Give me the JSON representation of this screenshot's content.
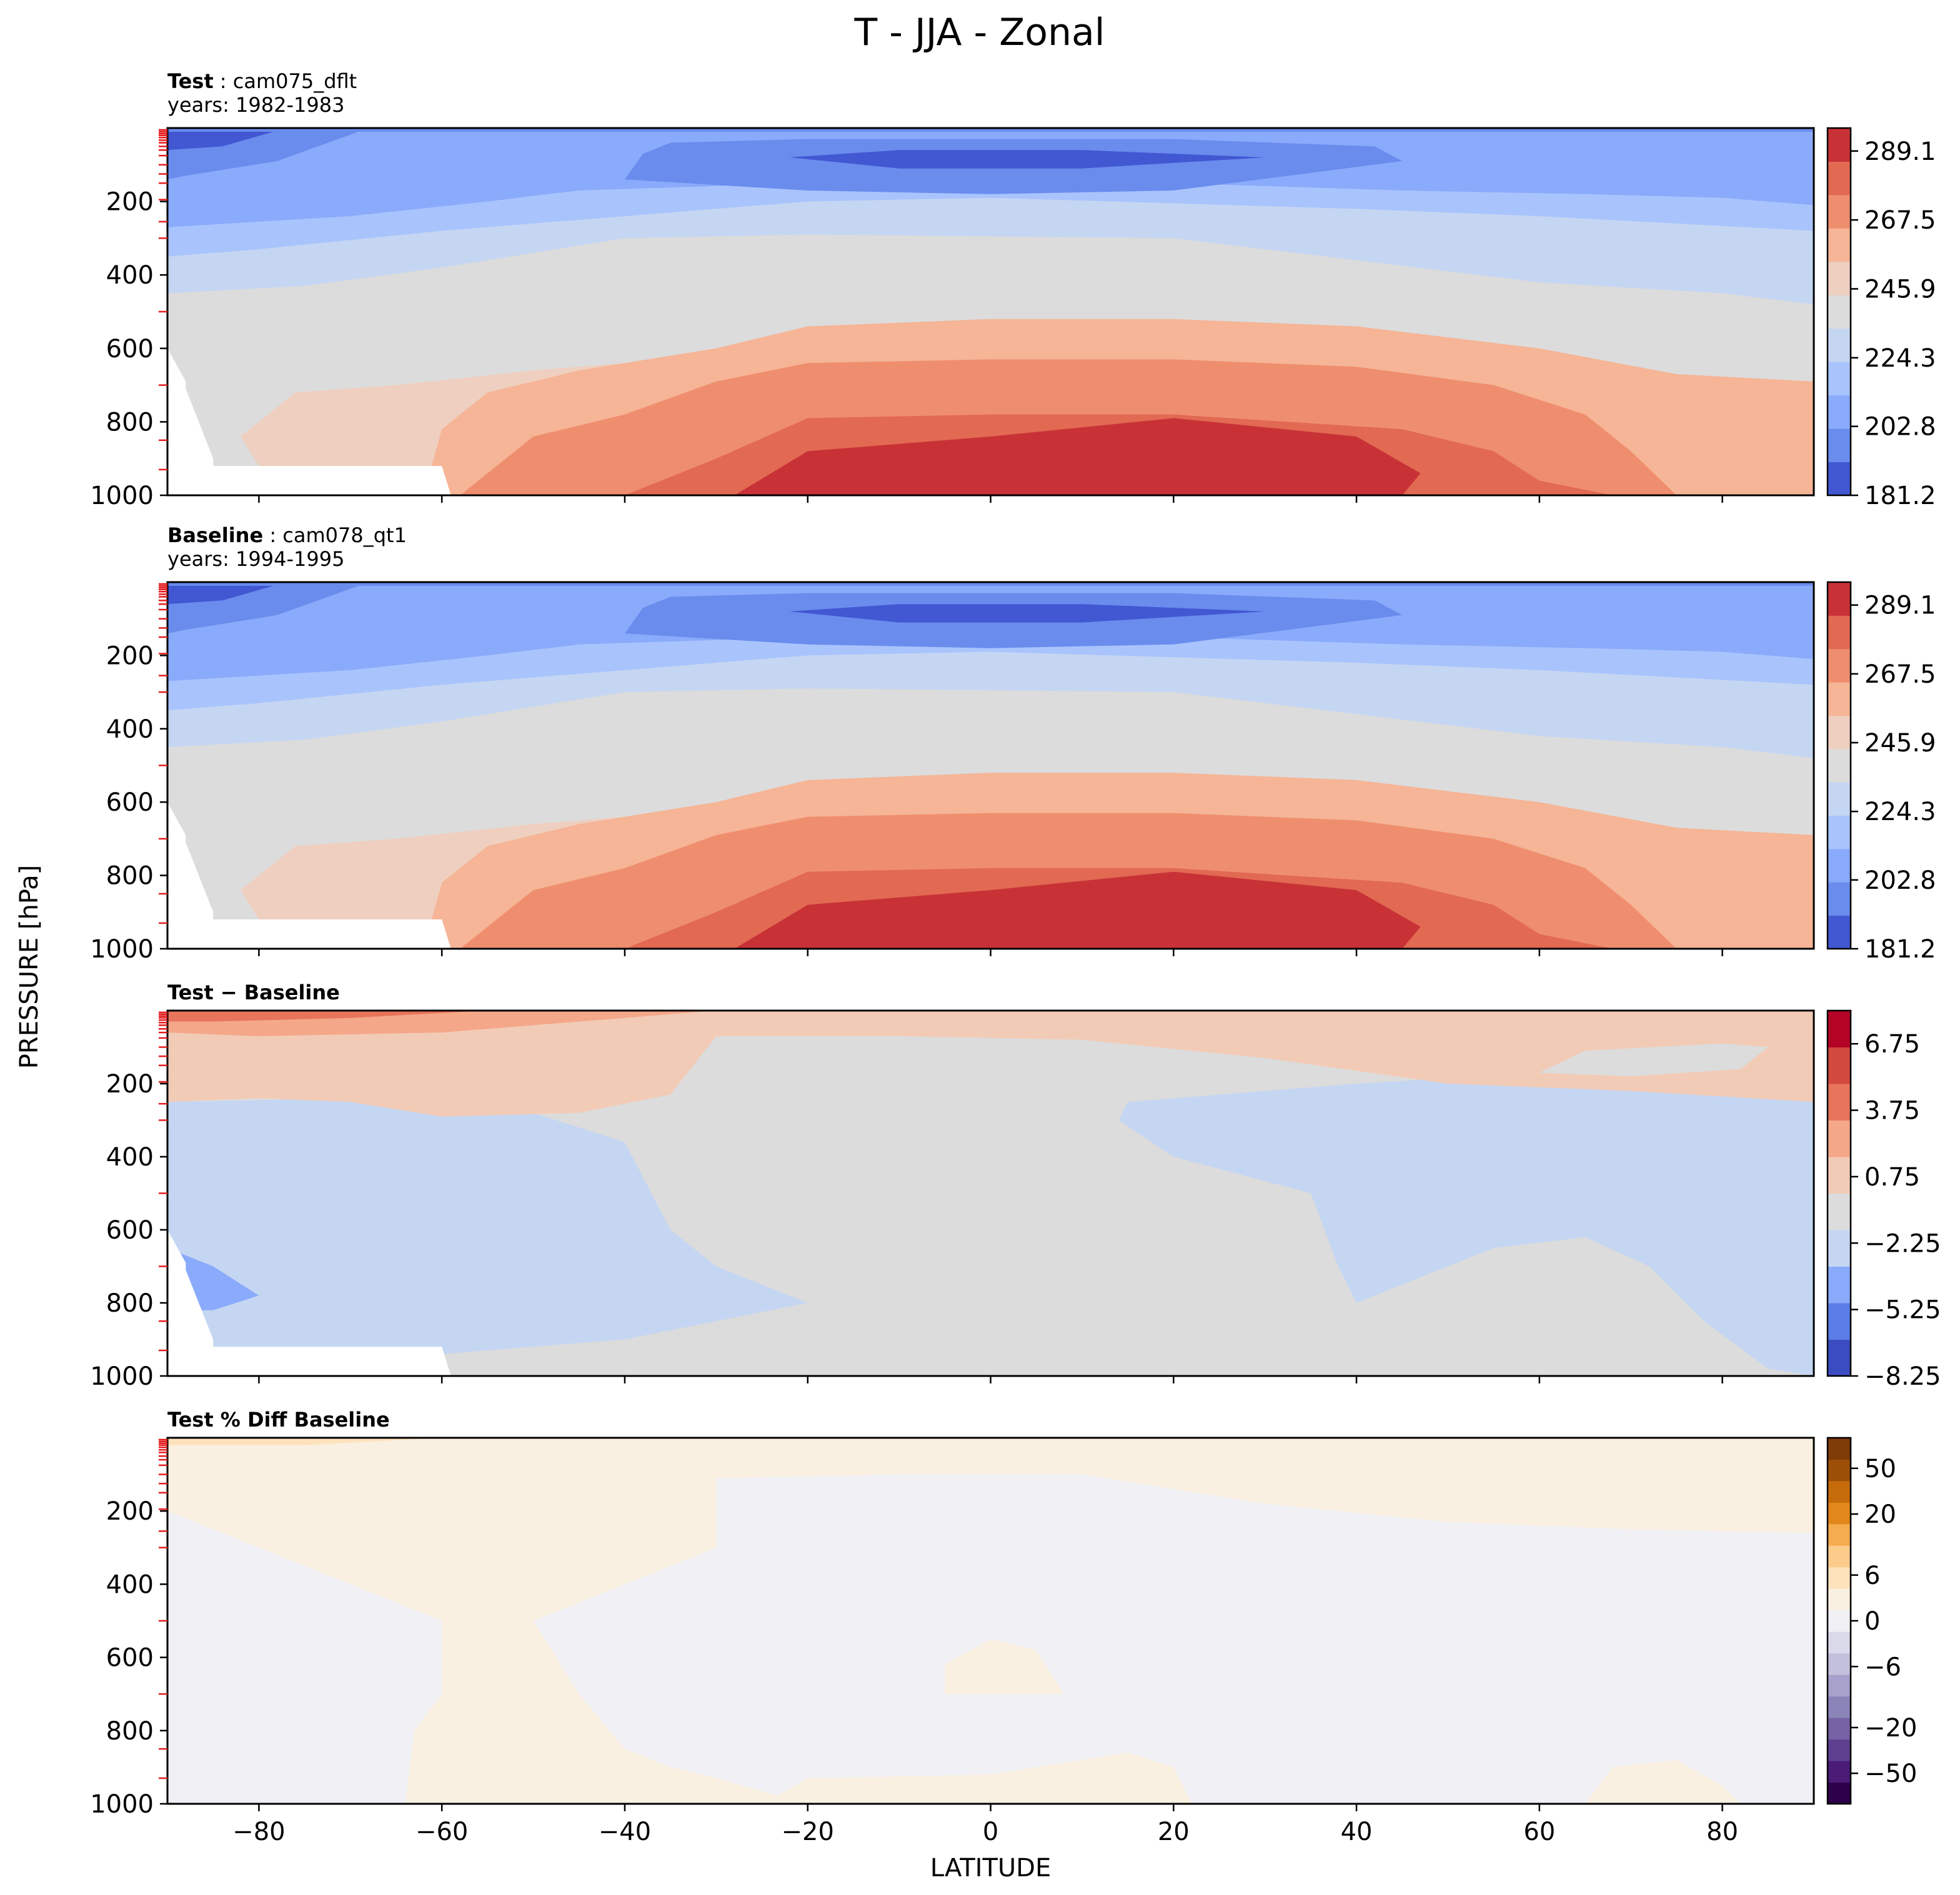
{
  "figure_title": "T - JJA - Zonal",
  "shared_axes": {
    "xlabel": "LATITUDE",
    "ylabel": "PRESSURE [hPa]",
    "xlim": [
      -90,
      90
    ],
    "xticks": [
      "−80",
      "−60",
      "−40",
      "−20",
      "0",
      "20",
      "40",
      "60",
      "80"
    ],
    "xtick_values": [
      -80,
      -60,
      -40,
      -20,
      0,
      20,
      40,
      60,
      80
    ],
    "ylim": [
      0,
      1000
    ],
    "yticks": [
      "200",
      "400",
      "600",
      "800",
      "1000"
    ],
    "ytick_values": [
      200,
      400,
      600,
      800,
      1000
    ]
  },
  "panels": [
    {
      "id": "test",
      "title_bold": "Test",
      "title_sep": ":",
      "title_case": "cam075_dflt",
      "title_years": "years: 1982-1983",
      "colorbar_ticks": [
        "289.1",
        "267.5",
        "245.9",
        "224.3",
        "202.8",
        "181.2"
      ]
    },
    {
      "id": "baseline",
      "title_bold": "Baseline",
      "title_sep": ":",
      "title_case": "cam078_qt1",
      "title_years": "years: 1994-1995",
      "colorbar_ticks": [
        "289.1",
        "267.5",
        "245.9",
        "224.3",
        "202.8",
        "181.2"
      ]
    },
    {
      "id": "diff",
      "title_bold": "Test − Baseline",
      "colorbar_ticks": [
        "6.75",
        "3.75",
        "0.75",
        "−2.25",
        "−5.25",
        "−8.25"
      ]
    },
    {
      "id": "pctdiff",
      "title_bold": "Test % Diff Baseline",
      "colorbar_ticks": [
        "50",
        "20",
        "6",
        "0",
        "−6",
        "−20",
        "−50"
      ]
    }
  ],
  "chart_data": [
    {
      "type": "contourf",
      "title": "Test: cam075_dflt (years: 1982-1983)",
      "xlabel": "LATITUDE",
      "ylabel": "PRESSURE [hPa]",
      "xlim": [
        -90,
        90
      ],
      "ylim": [
        1000,
        0
      ],
      "levels": [
        181.2,
        188.4,
        195.6,
        202.8,
        210.0,
        217.1,
        224.3,
        231.5,
        238.7,
        245.9,
        253.1,
        260.3,
        267.5,
        274.7,
        281.9,
        289.1,
        296.3
      ],
      "colorbar_ticks": [
        181.2,
        202.8,
        224.3,
        245.9,
        267.5,
        289.1
      ],
      "cmap": "coolwarm",
      "colors": [
        "#4257d2",
        "#6a8ced",
        "#8aaafb",
        "#a9c4fd",
        "#c5d6f2",
        "#dcdcdc",
        "#efcfbf",
        "#f5b596",
        "#ef8e6e",
        "#e26952",
        "#c83236"
      ]
    },
    {
      "type": "contourf",
      "title": "Baseline: cam078_qt1 (years: 1994-1995)",
      "xlabel": "LATITUDE",
      "ylabel": "PRESSURE [hPa]",
      "xlim": [
        -90,
        90
      ],
      "ylim": [
        1000,
        0
      ],
      "levels": [
        181.2,
        188.4,
        195.6,
        202.8,
        210.0,
        217.1,
        224.3,
        231.5,
        238.7,
        245.9,
        253.1,
        260.3,
        267.5,
        274.7,
        281.9,
        289.1,
        296.3
      ],
      "colorbar_ticks": [
        181.2,
        202.8,
        224.3,
        245.9,
        267.5,
        289.1
      ],
      "cmap": "coolwarm",
      "colors": [
        "#4257d2",
        "#6a8ced",
        "#8aaafb",
        "#a9c4fd",
        "#c5d6f2",
        "#dcdcdc",
        "#efcfbf",
        "#f5b596",
        "#ef8e6e",
        "#e26952",
        "#c83236"
      ]
    },
    {
      "type": "contourf",
      "title": "Test − Baseline",
      "xlabel": "LATITUDE",
      "ylabel": "PRESSURE [hPa]",
      "xlim": [
        -90,
        90
      ],
      "ylim": [
        1000,
        0
      ],
      "levels": [
        -8.25,
        -6.75,
        -5.25,
        -3.75,
        -2.25,
        -0.75,
        0.75,
        2.25,
        3.75,
        5.25,
        6.75,
        8.25
      ],
      "colorbar_ticks": [
        -8.25,
        -5.25,
        -2.25,
        0.75,
        3.75,
        6.75
      ],
      "cmap": "coolwarm",
      "colors": [
        "#3b4cc0",
        "#5b7ce6",
        "#8aaafb",
        "#c5d6f2",
        "#dcdcdc",
        "#f2cbb7",
        "#f5a789",
        "#e7745b",
        "#d1493f",
        "#b40426"
      ]
    },
    {
      "type": "contourf",
      "title": "Test % Diff Baseline",
      "xlabel": "LATITUDE",
      "ylabel": "PRESSURE [hPa]",
      "xlim": [
        -90,
        90
      ],
      "ylim": [
        1000,
        0
      ],
      "levels": [
        -100,
        -75,
        -50,
        -40,
        -30,
        -20,
        -15,
        -10,
        -8,
        -6,
        -4,
        -2,
        0,
        2,
        4,
        6,
        8,
        10,
        15,
        20,
        30,
        40,
        50,
        75,
        100
      ],
      "colorbar_ticks": [
        -50,
        -20,
        -6,
        0,
        6,
        20,
        50
      ],
      "cmap": "PuOr_r",
      "colors": [
        "#2d004b",
        "#4a1c78",
        "#5e3f8f",
        "#7561a3",
        "#8b84b8",
        "#a7a1cb",
        "#c3c0dc",
        "#dad9ea",
        "#efeff4",
        "#faf0e1",
        "#fde2bc",
        "#fdcb8a",
        "#f5ac4f",
        "#e2871c",
        "#c66b0c",
        "#9c4f06",
        "#7f3b08"
      ]
    }
  ]
}
